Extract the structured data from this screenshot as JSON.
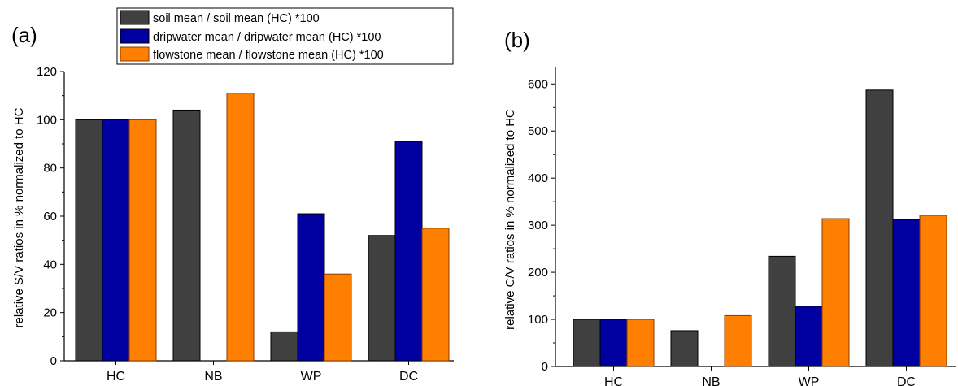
{
  "legend": {
    "entries": [
      {
        "label": "soil mean / soil mean (HC) *100",
        "color": "#404040",
        "stroke": "#000000"
      },
      {
        "label": "dripwater mean  / dripwater mean (HC) *100",
        "color": "#0000A0",
        "stroke": "#000000"
      },
      {
        "label": "flowstone mean / flowstone mean (HC) *100",
        "color": "#FF8000",
        "stroke": "#8B3A00"
      }
    ]
  },
  "chart_data": [
    {
      "type": "bar",
      "panel_label": "(a)",
      "title": "",
      "xlabel": "",
      "ylabel": "relative S/V ratios  in % normalized to HC",
      "categories": [
        "HC",
        "NB",
        "WP",
        "DC"
      ],
      "ylim": [
        0,
        120
      ],
      "yticks": [
        0,
        20,
        40,
        60,
        80,
        100,
        120
      ],
      "series": [
        {
          "name": "soil mean / soil mean (HC) *100",
          "values": [
            100,
            104,
            12,
            52
          ]
        },
        {
          "name": "dripwater mean  / dripwater mean (HC) *100",
          "values": [
            100,
            null,
            61,
            91
          ]
        },
        {
          "name": "flowstone mean / flowstone mean (HC) *100",
          "values": [
            100,
            111,
            36,
            55
          ]
        }
      ]
    },
    {
      "type": "bar",
      "panel_label": "(b)",
      "title": "",
      "xlabel": "",
      "ylabel": "relative C/V ratios  in % normalized to HC",
      "categories": [
        "HC",
        "NB",
        "WP",
        "DC"
      ],
      "ylim": [
        0,
        635
      ],
      "yticks": [
        0,
        100,
        200,
        300,
        400,
        500,
        600
      ],
      "series": [
        {
          "name": "soil mean / soil mean (HC) *100",
          "values": [
            100,
            76,
            234,
            587
          ]
        },
        {
          "name": "dripwater mean  / dripwater mean (HC) *100",
          "values": [
            100,
            null,
            128,
            312
          ]
        },
        {
          "name": "flowstone mean / flowstone mean (HC) *100",
          "values": [
            100,
            108,
            314,
            321
          ]
        }
      ]
    }
  ]
}
